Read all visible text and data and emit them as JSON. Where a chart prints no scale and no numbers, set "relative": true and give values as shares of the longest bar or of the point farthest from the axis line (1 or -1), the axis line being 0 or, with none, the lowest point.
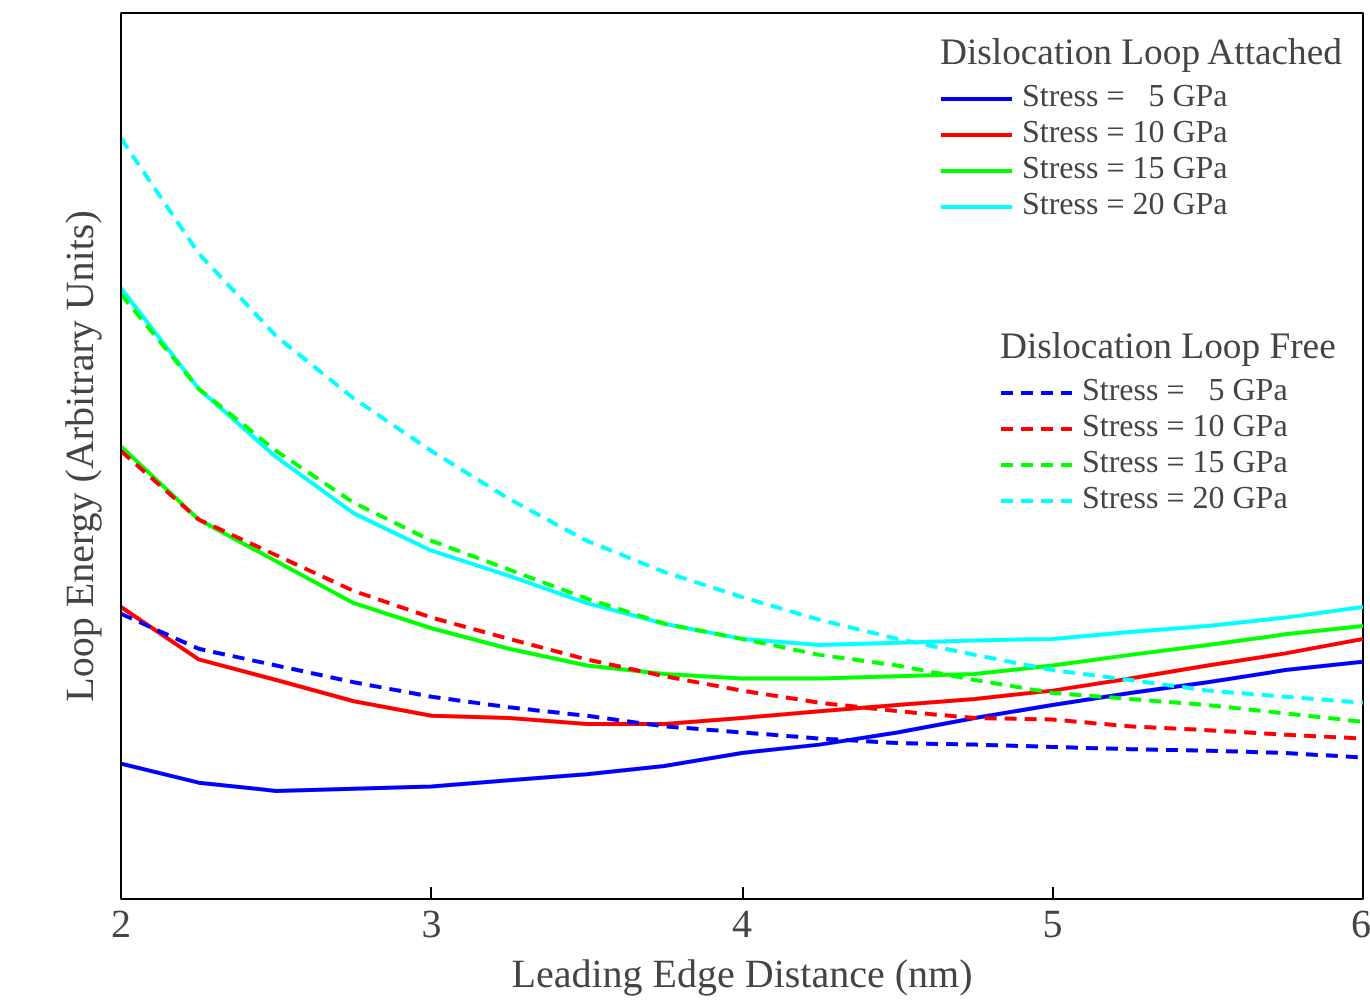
{
  "chart_data": {
    "type": "line",
    "relative": true,
    "xlabel": "Leading Edge Distance (nm)",
    "ylabel": "Loop Energy (Arbitrary Units)",
    "xlim": [
      2,
      6
    ],
    "xticks": [
      2,
      3,
      4,
      5,
      6
    ],
    "legend": "top right",
    "grid": false,
    "marker": "none",
    "annotations": [
      "Dislocation Loop Attached",
      "Dislocation Loop Free"
    ],
    "x": [
      2,
      2.25,
      2.5,
      2.75,
      3,
      3.25,
      3.5,
      3.75,
      4,
      4.25,
      4.5,
      4.75,
      5,
      5.25,
      5.5,
      5.75,
      6
    ],
    "series": [
      {
        "name": "Stress =   5 GPa",
        "color": "#0000ff",
        "line_style": "solid",
        "values": [
          0.178,
          0.153,
          0.142,
          0.145,
          0.148,
          0.156,
          0.164,
          0.175,
          0.192,
          0.203,
          0.219,
          0.238,
          0.255,
          0.271,
          0.285,
          0.301,
          0.312
        ]
      },
      {
        "name": "Stress = 10 GPa",
        "color": "#ff0000",
        "line_style": "solid",
        "values": [
          0.384,
          0.315,
          0.288,
          0.26,
          0.241,
          0.238,
          0.23,
          0.23,
          0.238,
          0.247,
          0.255,
          0.263,
          0.274,
          0.29,
          0.307,
          0.323,
          0.342
        ]
      },
      {
        "name": "Stress = 15 GPa",
        "color": "#00ff00",
        "line_style": "solid",
        "values": [
          0.595,
          0.499,
          0.444,
          0.389,
          0.356,
          0.329,
          0.307,
          0.296,
          0.29,
          0.29,
          0.293,
          0.296,
          0.307,
          0.321,
          0.334,
          0.348,
          0.359
        ]
      },
      {
        "name": "Stress = 20 GPa",
        "color": "#00ffff",
        "line_style": "solid",
        "values": [
          0.803,
          0.671,
          0.581,
          0.507,
          0.458,
          0.425,
          0.389,
          0.362,
          0.342,
          0.334,
          0.337,
          0.34,
          0.342,
          0.351,
          0.359,
          0.37,
          0.384
        ]
      },
      {
        "name": "Stress =   5 GPa",
        "color": "#0000ff",
        "line_style": "dashed",
        "values": [
          0.375,
          0.329,
          0.307,
          0.285,
          0.266,
          0.252,
          0.241,
          0.227,
          0.219,
          0.211,
          0.205,
          0.203,
          0.2,
          0.197,
          0.195,
          0.192,
          0.186
        ]
      },
      {
        "name": "Stress = 10 GPa",
        "color": "#ff0000",
        "line_style": "dashed",
        "values": [
          0.589,
          0.499,
          0.452,
          0.405,
          0.37,
          0.342,
          0.315,
          0.293,
          0.274,
          0.258,
          0.247,
          0.238,
          0.236,
          0.227,
          0.222,
          0.216,
          0.211
        ]
      },
      {
        "name": "Stress = 15 GPa",
        "color": "#00ff00",
        "line_style": "dashed",
        "values": [
          0.795,
          0.671,
          0.589,
          0.521,
          0.471,
          0.433,
          0.395,
          0.362,
          0.342,
          0.321,
          0.307,
          0.288,
          0.271,
          0.263,
          0.255,
          0.244,
          0.233
        ]
      },
      {
        "name": "Stress = 20 GPa",
        "color": "#00ffff",
        "line_style": "dashed",
        "values": [
          1,
          0.849,
          0.74,
          0.658,
          0.589,
          0.526,
          0.471,
          0.43,
          0.397,
          0.367,
          0.342,
          0.321,
          0.301,
          0.288,
          0.274,
          0.266,
          0.258
        ]
      }
    ]
  }
}
